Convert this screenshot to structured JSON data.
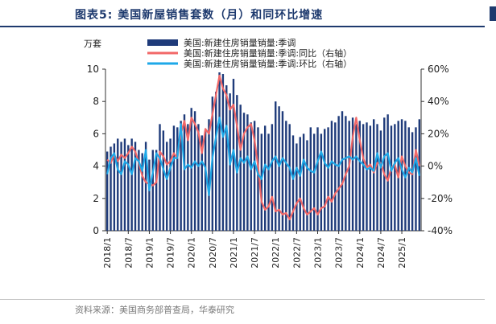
{
  "figure": {
    "label": "图表5:",
    "title": "美国新屋销售套数（月）和同环比增速",
    "source": "资料来源：美国商务部普查局，华泰研究"
  },
  "colors": {
    "bar": "#1f3b7a",
    "yoy": "#f26868",
    "mom": "#1ea8e8",
    "title": "#1e3a6e"
  },
  "chart_data": {
    "type": "bar",
    "left_unit": "万套",
    "legend": [
      "美国:新建住房销量销量:季调",
      "美国:新建住房销量销量:季调:同比（右轴）",
      "美国:新建住房销量销量:季调:环比（右轴）"
    ],
    "legend_position": "top",
    "ylim_left": [
      0,
      10
    ],
    "yticks_left": [
      0,
      2,
      4,
      6,
      8,
      10
    ],
    "ylim_right": [
      -40,
      60
    ],
    "yticks_right": [
      "-40%",
      "-20%",
      "0%",
      "20%",
      "40%",
      "60%"
    ],
    "xtick_labels": [
      "2018/1",
      "2018/7",
      "2019/1",
      "2019/7",
      "2020/1",
      "2020/7",
      "2021/1",
      "2021/7",
      "2022/1",
      "2022/7",
      "2023/1",
      "2023/7",
      "2024/1",
      "2024/7",
      "2025/1"
    ],
    "series": [
      {
        "name": "美国:新建住房销量销量:季调",
        "axis": "left",
        "type": "bar",
        "values": [
          4.9,
          5.2,
          5.4,
          5.7,
          5.5,
          5.7,
          5.3,
          5.7,
          5.5,
          5.0,
          4.8,
          5.5,
          4.4,
          5.0,
          5.0,
          6.6,
          6.2,
          5.5,
          5.7,
          6.5,
          6.4,
          6.8,
          7.2,
          6.6,
          7.6,
          7.4,
          6.6,
          5.9,
          6.2,
          6.9,
          8.3,
          8.6,
          9.8,
          9.7,
          9.0,
          8.5,
          9.4,
          8.4,
          7.8,
          7.3,
          7.2,
          6.7,
          6.8,
          6.4,
          6.0,
          6.5,
          6.0,
          6.6,
          8.0,
          7.7,
          7.4,
          6.8,
          6.6,
          5.9,
          5.4,
          5.8,
          6.0,
          5.6,
          6.4,
          6.0,
          6.4,
          6.0,
          6.3,
          6.4,
          6.8,
          6.7,
          7.1,
          7.4,
          7.1,
          6.8,
          7.0,
          6.6,
          6.8,
          6.6,
          6.7,
          6.5,
          6.9,
          6.6,
          6.2,
          7.0,
          7.2,
          6.5,
          6.6,
          6.8,
          6.9,
          6.8,
          6.4,
          6.1,
          6.4,
          6.9
        ]
      },
      {
        "name": "美国:新建住房销量销量:季调:同比（右轴）",
        "axis": "right",
        "type": "line",
        "values": [
          4,
          2,
          7,
          3,
          7,
          5,
          8,
          12,
          9,
          2,
          -6,
          -10,
          -11,
          -12,
          -10,
          9,
          6,
          1,
          3,
          8,
          5,
          20,
          28,
          16,
          30,
          26,
          21,
          8,
          23,
          20,
          32,
          44,
          56,
          48,
          44,
          35,
          38,
          25,
          10,
          20,
          24,
          26,
          16,
          0,
          -22,
          -27,
          -25,
          -19,
          -28,
          -27,
          -30,
          -29,
          -33,
          -28,
          -23,
          -20,
          -26,
          -30,
          -28,
          -26,
          -30,
          -26,
          -25,
          -19,
          -22,
          -17,
          -14,
          -11,
          -5,
          0,
          18,
          30,
          16,
          5,
          -1,
          1,
          -4,
          2,
          2,
          -5,
          -9,
          -1,
          1,
          -7,
          6,
          0,
          -4,
          -5,
          10,
          0
        ]
      },
      {
        "name": "美国:新建住房销量销量:季调:环比（右轴）",
        "axis": "right",
        "type": "line",
        "values": [
          -5,
          5,
          8,
          -2,
          -5,
          3,
          1,
          -5,
          5,
          3,
          -3,
          10,
          -15,
          -4,
          8,
          5,
          -2,
          -8,
          -1,
          5,
          5,
          26,
          -2,
          1,
          -1,
          3,
          0,
          3,
          -1,
          -18,
          5,
          18,
          30,
          18,
          25,
          1,
          10,
          -4,
          5,
          2,
          6,
          -2,
          3,
          -5,
          -8,
          1,
          -2,
          3,
          6,
          0,
          5,
          2,
          -1,
          -8,
          -1,
          -6,
          4,
          -1,
          -3,
          -4,
          3,
          9,
          2,
          -1,
          3,
          1,
          0,
          4,
          5,
          6,
          4,
          6,
          3,
          1,
          -2,
          -1,
          -3,
          8,
          -1,
          6,
          8,
          -3,
          2,
          5,
          -2,
          -7,
          -1,
          -4,
          5,
          -6
        ]
      }
    ]
  }
}
